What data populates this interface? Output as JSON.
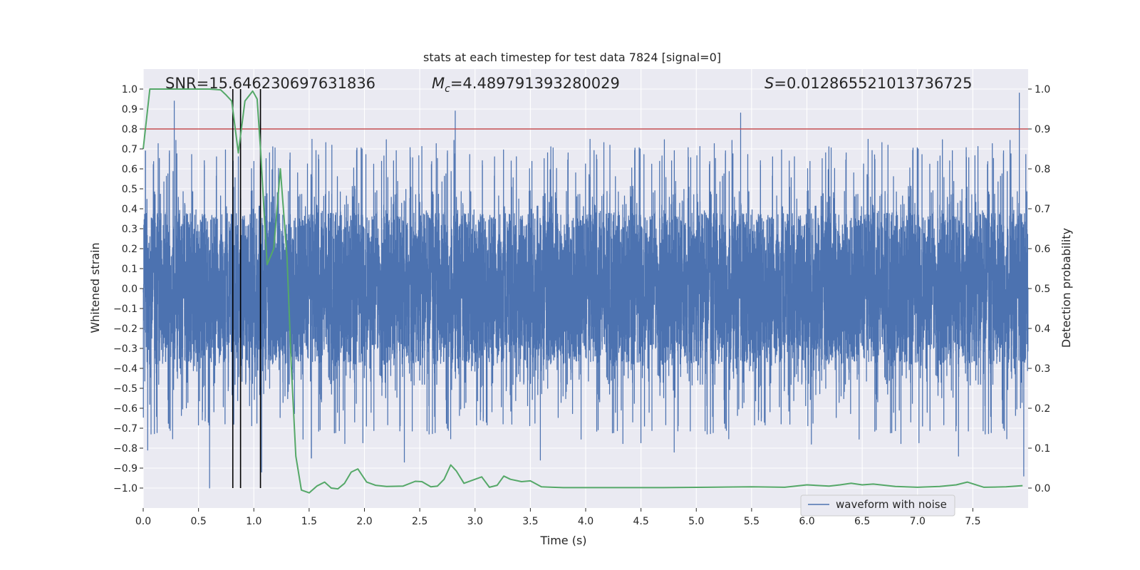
{
  "chart_data": {
    "type": "line",
    "title": "stats at each timestep for test data 7824 [signal=0]",
    "xlabel": "Time (s)",
    "ylabel_left": "Whitened strain",
    "ylabel_right": "Detection probability",
    "xlim": [
      0.0,
      8.0
    ],
    "ylim_left": [
      -1.1,
      1.1
    ],
    "ylim_right": [
      -0.05,
      1.05
    ],
    "x_ticks": [
      0.0,
      0.5,
      1.0,
      1.5,
      2.0,
      2.5,
      3.0,
      3.5,
      4.0,
      4.5,
      5.0,
      5.5,
      6.0,
      6.5,
      7.0,
      7.5
    ],
    "y_left_ticks": [
      1.0,
      0.9,
      0.8,
      0.7,
      0.6,
      0.5,
      0.4,
      0.3,
      0.2,
      0.1,
      0.0,
      -0.1,
      -0.2,
      -0.3,
      -0.4,
      -0.5,
      -0.6,
      -0.7,
      -0.8,
      -0.9,
      -1.0
    ],
    "y_right_ticks": [
      1.0,
      0.9,
      0.8,
      0.7,
      0.6,
      0.5,
      0.4,
      0.3,
      0.2,
      0.1,
      0.0
    ],
    "y_left_tick_labels": [
      "1.0",
      "0.9",
      "0.8",
      "0.7",
      "0.6",
      "0.5",
      "0.4",
      "0.3",
      "0.2",
      "0.1",
      "0.0",
      "−0.1",
      "−0.2",
      "−0.3",
      "−0.4",
      "−0.5",
      "−0.6",
      "−0.7",
      "−0.8",
      "−0.9",
      "−1.0"
    ],
    "annotations": {
      "snr": "SNR=15.646230697631836",
      "mc_symbol": "M",
      "mc_sub": "c",
      "mc_value": "=4.489791393280029",
      "s_symbol": "S",
      "s_value": "=0.012865521013736725"
    },
    "legend": {
      "label": "waveform with noise",
      "placement": "lower-right"
    },
    "threshold_right": 0.9,
    "vertical_markers_x": [
      0.81,
      0.88,
      1.06
    ],
    "waveform": {
      "name": "waveform with noise",
      "color": "#4c72b0",
      "samples": 8192,
      "core_amplitude": 0.38,
      "peaks": [
        [
          0.02,
          0.69
        ],
        [
          0.04,
          -0.81
        ],
        [
          0.28,
          0.94
        ],
        [
          0.6,
          -1.0
        ],
        [
          1.07,
          -0.92
        ],
        [
          1.52,
          -0.85
        ],
        [
          2.36,
          -0.87
        ],
        [
          2.82,
          0.89
        ],
        [
          3.59,
          -0.86
        ],
        [
          4.8,
          -0.82
        ],
        [
          5.4,
          0.88
        ],
        [
          6.04,
          -0.78
        ],
        [
          7.37,
          -0.84
        ],
        [
          7.92,
          0.98
        ],
        [
          7.96,
          -0.94
        ]
      ]
    },
    "probability": {
      "name": "detection probability",
      "color": "#55a868",
      "x": [
        0.0,
        0.06,
        0.15,
        0.3,
        0.45,
        0.6,
        0.7,
        0.75,
        0.8,
        0.86,
        0.92,
        0.99,
        1.03,
        1.06,
        1.12,
        1.18,
        1.24,
        1.3,
        1.34,
        1.38,
        1.43,
        1.5,
        1.57,
        1.64,
        1.7,
        1.76,
        1.82,
        1.88,
        1.94,
        2.02,
        2.1,
        2.2,
        2.35,
        2.46,
        2.52,
        2.6,
        2.66,
        2.72,
        2.78,
        2.83,
        2.9,
        2.98,
        3.06,
        3.13,
        3.2,
        3.26,
        3.32,
        3.42,
        3.5,
        3.6,
        3.7,
        3.8,
        4.0,
        4.3,
        4.7,
        5.1,
        5.5,
        5.8,
        6.0,
        6.2,
        6.3,
        6.4,
        6.5,
        6.6,
        6.8,
        7.0,
        7.2,
        7.35,
        7.45,
        7.6,
        7.8,
        7.95
      ],
      "y": [
        0.85,
        1.0,
        1.0,
        1.0,
        1.0,
        1.0,
        0.998,
        0.985,
        0.97,
        0.84,
        0.97,
        0.995,
        0.975,
        0.85,
        0.56,
        0.6,
        0.8,
        0.58,
        0.3,
        0.08,
        -0.005,
        -0.012,
        0.005,
        0.015,
        0.0,
        -0.002,
        0.012,
        0.04,
        0.048,
        0.015,
        0.007,
        0.004,
        0.005,
        0.017,
        0.016,
        0.003,
        0.005,
        0.022,
        0.058,
        0.043,
        0.012,
        0.02,
        0.028,
        0.002,
        0.007,
        0.03,
        0.022,
        0.016,
        0.018,
        0.003,
        0.002,
        0.001,
        0.001,
        0.001,
        0.001,
        0.002,
        0.003,
        0.002,
        0.008,
        0.005,
        0.008,
        0.012,
        0.008,
        0.01,
        0.004,
        0.002,
        0.004,
        0.008,
        0.015,
        0.002,
        0.003,
        0.006
      ]
    },
    "colors": {
      "plot_background": "#eaeaf2",
      "grid": "#ffffff",
      "threshold": "#c44e52",
      "marker": "#000000"
    }
  }
}
